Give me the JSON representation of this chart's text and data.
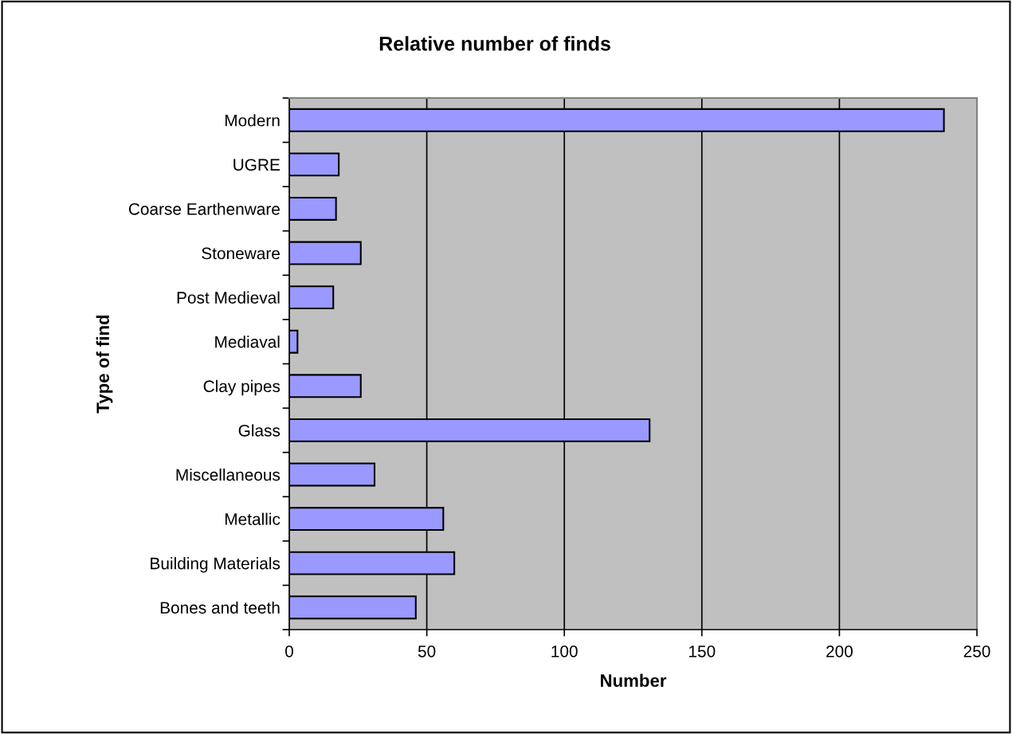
{
  "chart_data": {
    "type": "bar",
    "orientation": "horizontal",
    "title": "Relative number of finds",
    "xlabel": "Number",
    "ylabel": "Type of find",
    "categories": [
      "Modern",
      "UGRE",
      "Coarse Earthenware",
      "Stoneware",
      "Post Medieval",
      "Mediaval",
      "Clay pipes",
      "Glass",
      "Miscellaneous",
      "Metallic",
      "Building Materials",
      "Bones and teeth"
    ],
    "values": [
      238,
      18,
      17,
      26,
      16,
      3,
      26,
      131,
      31,
      56,
      60,
      46
    ],
    "color": "#9999ff",
    "xlim": [
      0,
      250
    ],
    "xticks": [
      0,
      50,
      100,
      150,
      200,
      250
    ],
    "grid": "x",
    "legend": false
  }
}
